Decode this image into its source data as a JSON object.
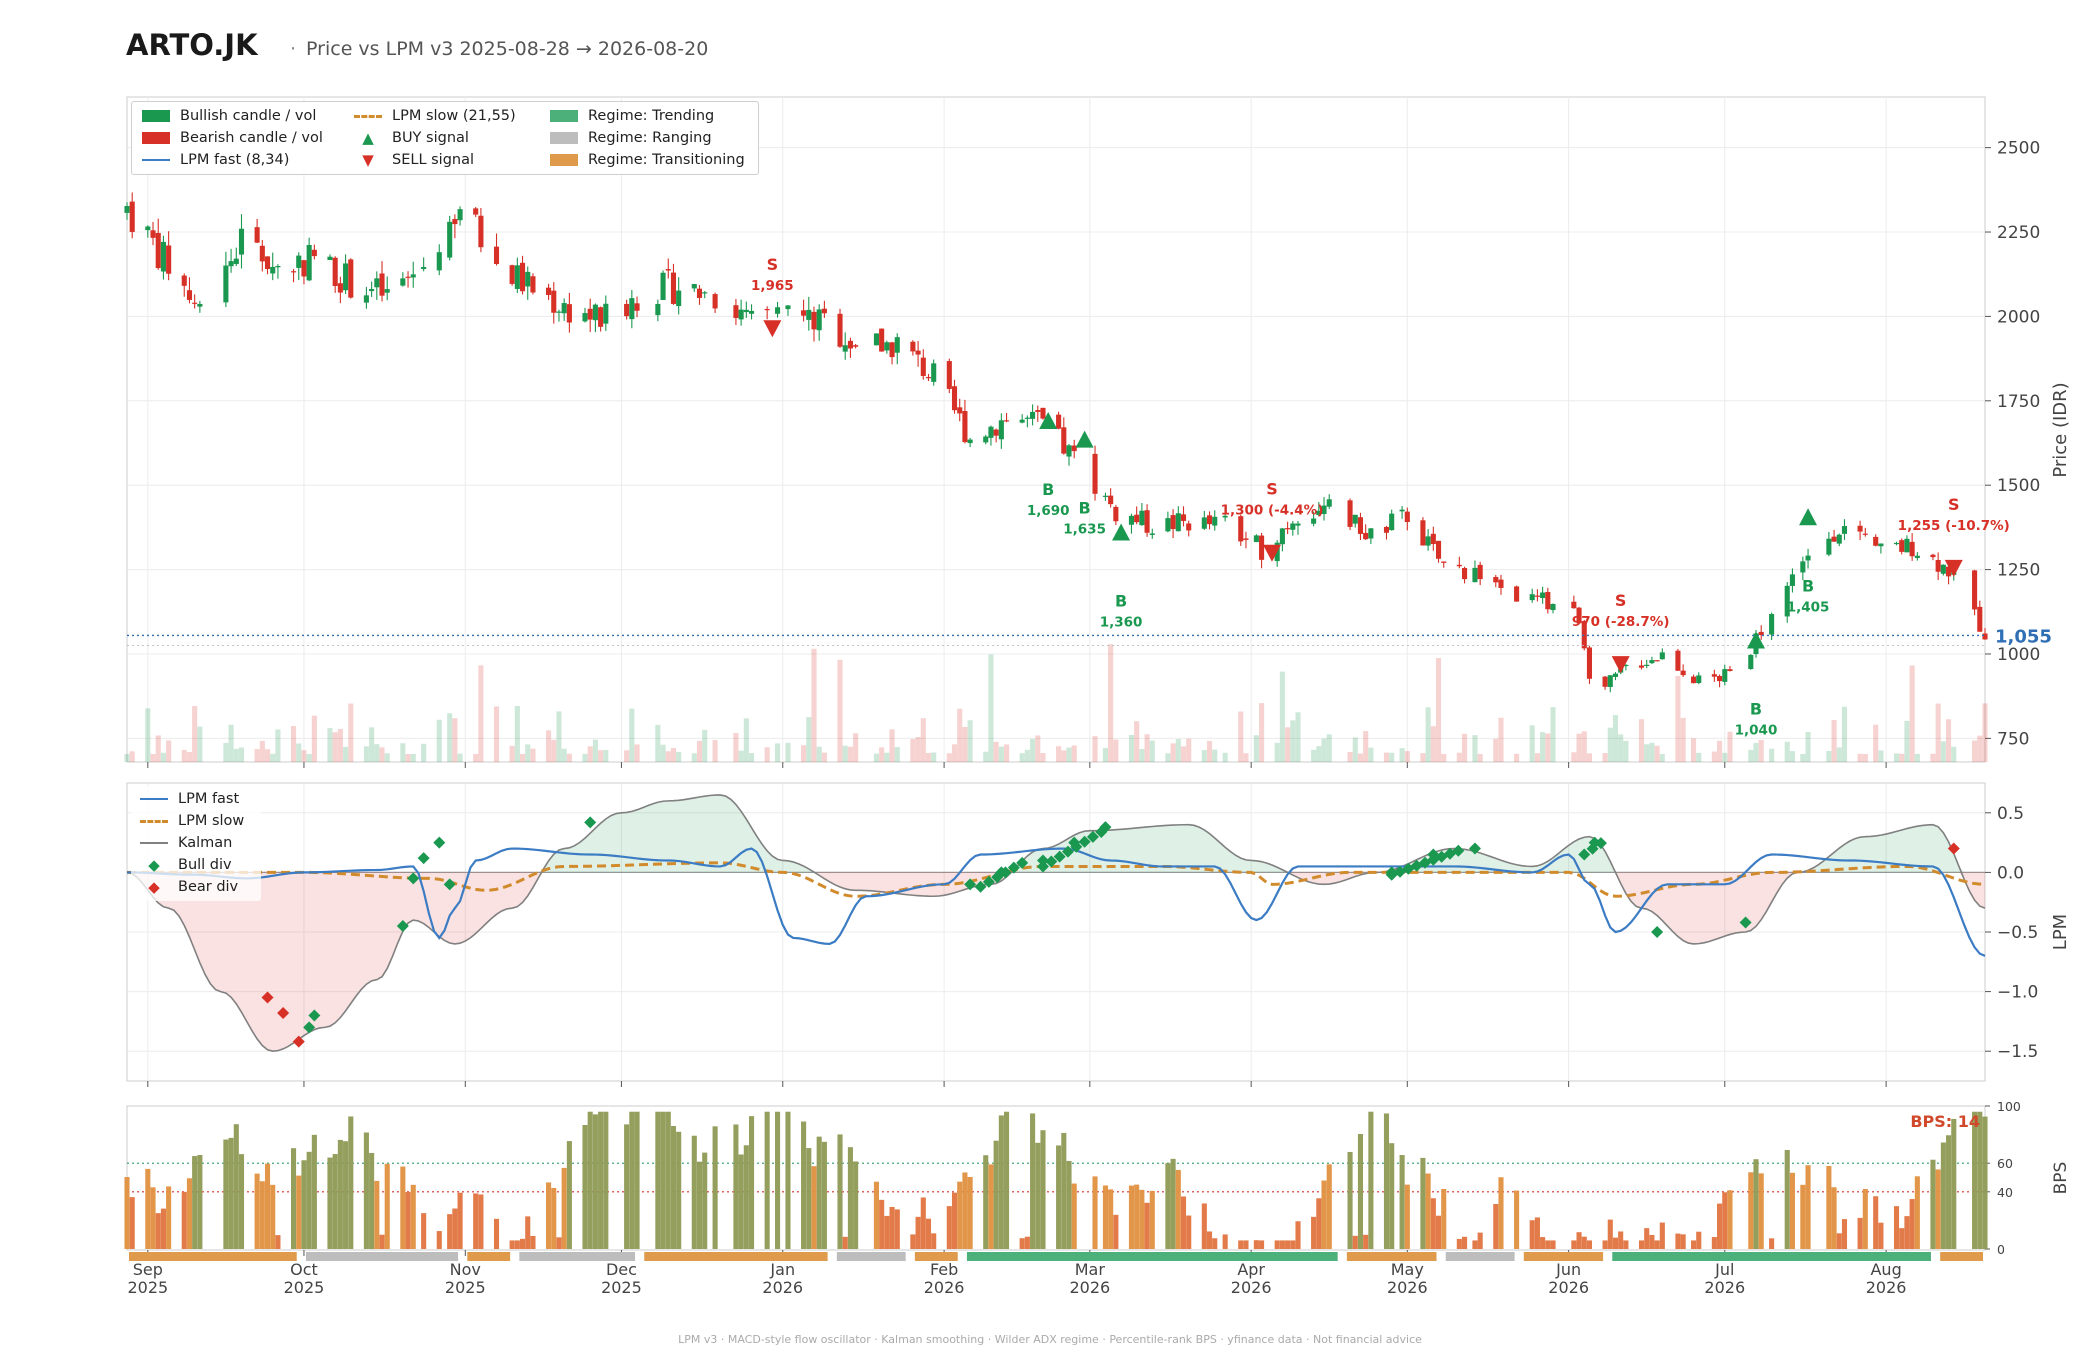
{
  "header": {
    "ticker": "ARTO.JK",
    "dot": "·",
    "subtitle": "Price vs LPM v3  2025-08-28 → 2026-08-20"
  },
  "footer": "LPM v3  ·  MACD-style flow oscillator  ·  Kalman smoothing  ·  Wilder ADX regime  ·  Percentile-rank BPS  ·  yfinance data  ·  Not financial advice",
  "colors": {
    "bull": "#1a9850",
    "bear": "#d73027",
    "fast": "#3b7cc4",
    "slow": "#d18b2c",
    "kalman": "#808080",
    "trending": "#4cb07a",
    "ranging": "#bdbdbd",
    "transitioning": "#e09a4c"
  },
  "legends": {
    "price": [
      {
        "label": "Bullish candle / vol",
        "icon": "green-box"
      },
      {
        "label": "Bearish candle / vol",
        "icon": "red-box"
      },
      {
        "label": "LPM fast (8,34)",
        "icon": "blue-line"
      },
      {
        "label": "LPM slow (21,55)",
        "icon": "orange-dashed-line"
      },
      {
        "label": "BUY signal",
        "icon": "triangle-up-icon"
      },
      {
        "label": "SELL signal",
        "icon": "triangle-down-icon"
      },
      {
        "label": "Regime: Trending",
        "icon": "green-box"
      },
      {
        "label": "Regime: Ranging",
        "icon": "grey-box"
      },
      {
        "label": "Regime: Transitioning",
        "icon": "orange-box"
      }
    ],
    "lpm": [
      {
        "label": "LPM fast",
        "icon": "blue-line"
      },
      {
        "label": "LPM slow",
        "icon": "orange-dashed-line"
      },
      {
        "label": "Kalman",
        "icon": "grey-line"
      },
      {
        "label": "Bull div",
        "icon": "diamond-icon"
      },
      {
        "label": "Bear div",
        "icon": "diamond-icon"
      }
    ]
  },
  "chart_data": [
    {
      "type": "candlestick",
      "title": "Price vs LPM v3",
      "ylabel": "Price (IDR)",
      "ylim": [
        680,
        2650
      ],
      "yticks": [
        750,
        1000,
        1250,
        1500,
        1750,
        2000,
        2250,
        2500
      ],
      "xlim": [
        "2025-08-28",
        "2026-08-20"
      ],
      "x_ticks": [
        {
          "date": "2025-09-01",
          "month": "Sep",
          "year": "2025"
        },
        {
          "date": "2025-10-01",
          "month": "Oct",
          "year": "2025"
        },
        {
          "date": "2025-11-01",
          "month": "Nov",
          "year": "2025"
        },
        {
          "date": "2025-12-01",
          "month": "Dec",
          "year": "2025"
        },
        {
          "date": "2026-01-01",
          "month": "Jan",
          "year": "2026"
        },
        {
          "date": "2026-02-01",
          "month": "Feb",
          "year": "2026"
        },
        {
          "date": "2026-03-01",
          "month": "Mar",
          "year": "2026"
        },
        {
          "date": "2026-04-01",
          "month": "Apr",
          "year": "2026"
        },
        {
          "date": "2026-05-01",
          "month": "May",
          "year": "2026"
        },
        {
          "date": "2026-06-01",
          "month": "Jun",
          "year": "2026"
        },
        {
          "date": "2026-07-01",
          "month": "Jul",
          "year": "2026"
        },
        {
          "date": "2026-08-01",
          "month": "Aug",
          "year": "2026"
        }
      ],
      "close_path": [
        [
          "2025-08-28",
          2320
        ],
        [
          "2025-09-05",
          2150
        ],
        [
          "2025-09-12",
          2000
        ],
        [
          "2025-09-19",
          2230
        ],
        [
          "2025-09-26",
          2140
        ],
        [
          "2025-10-03",
          2180
        ],
        [
          "2025-10-10",
          2100
        ],
        [
          "2025-10-17",
          2060
        ],
        [
          "2025-10-24",
          2150
        ],
        [
          "2025-10-31",
          2330
        ],
        [
          "2025-11-07",
          2160
        ],
        [
          "2025-11-14",
          2080
        ],
        [
          "2025-11-21",
          2020
        ],
        [
          "2025-11-28",
          1990
        ],
        [
          "2025-12-05",
          2070
        ],
        [
          "2025-12-12",
          2090
        ],
        [
          "2025-12-19",
          2060
        ],
        [
          "2025-12-26",
          1980
        ],
        [
          "2026-01-02",
          2010
        ],
        [
          "2026-01-09",
          1980
        ],
        [
          "2026-01-16",
          1910
        ],
        [
          "2026-01-23",
          1920
        ],
        [
          "2026-01-30",
          1820
        ],
        [
          "2026-02-06",
          1640
        ],
        [
          "2026-02-13",
          1700
        ],
        [
          "2026-02-20",
          1680
        ],
        [
          "2026-02-27",
          1560
        ],
        [
          "2026-03-06",
          1420
        ],
        [
          "2026-03-13",
          1380
        ],
        [
          "2026-03-20",
          1390
        ],
        [
          "2026-03-27",
          1380
        ],
        [
          "2026-04-03",
          1310
        ],
        [
          "2026-04-10",
          1420
        ],
        [
          "2026-04-17",
          1430
        ],
        [
          "2026-04-24",
          1350
        ],
        [
          "2026-05-01",
          1410
        ],
        [
          "2026-05-08",
          1260
        ],
        [
          "2026-05-15",
          1240
        ],
        [
          "2026-05-22",
          1170
        ],
        [
          "2026-05-29",
          1150
        ],
        [
          "2026-06-03",
          1110
        ],
        [
          "2026-06-06",
          870
        ],
        [
          "2026-06-12",
          960
        ],
        [
          "2026-06-19",
          1000
        ],
        [
          "2026-06-26",
          920
        ],
        [
          "2026-07-03",
          940
        ],
        [
          "2026-07-09",
          1100
        ],
        [
          "2026-07-16",
          1280
        ],
        [
          "2026-07-23",
          1380
        ],
        [
          "2026-07-30",
          1300
        ],
        [
          "2026-08-06",
          1320
        ],
        [
          "2026-08-13",
          1250
        ],
        [
          "2026-08-20",
          1060
        ]
      ],
      "volume": "bars under price, colored by candle direction",
      "last_price": {
        "label": "1,055",
        "value": 1055
      },
      "signals": [
        {
          "type": "SELL",
          "date": "2025-12-30",
          "price": 1965,
          "letter": "S",
          "label": "1,965"
        },
        {
          "type": "BUY",
          "date": "2026-02-21",
          "price": 1690,
          "letter": "B",
          "label": "1,690"
        },
        {
          "type": "BUY",
          "date": "2026-02-28",
          "price": 1635,
          "letter": "B",
          "label": "1,635"
        },
        {
          "type": "BUY",
          "date": "2026-03-07",
          "price": 1360,
          "letter": "B",
          "label": "1,360"
        },
        {
          "type": "SELL",
          "date": "2026-04-05",
          "price": 1300,
          "letter": "S",
          "label": "1,300 (-4.4%)"
        },
        {
          "type": "SELL",
          "date": "2026-06-11",
          "price": 970,
          "letter": "S",
          "label": "970 (-28.7%)"
        },
        {
          "type": "BUY",
          "date": "2026-07-07",
          "price": 1040,
          "letter": "B",
          "label": "1,040"
        },
        {
          "type": "BUY",
          "date": "2026-07-17",
          "price": 1405,
          "letter": "B",
          "label": "1,405"
        },
        {
          "type": "SELL",
          "date": "2026-08-14",
          "price": 1255,
          "letter": "S",
          "label": "1,255 (-10.7%)"
        }
      ]
    },
    {
      "type": "line",
      "ylabel": "LPM",
      "ylim": [
        -1.75,
        0.75
      ],
      "yticks": [
        -1.5,
        -1.0,
        -0.5,
        0.0,
        0.5
      ],
      "ytick_labels": [
        "−1.5",
        "−1.0",
        "−0.5",
        "0.0",
        "0.5"
      ],
      "series": [
        {
          "name": "LPM fast",
          "points": [
            [
              "2025-08-28",
              0.0
            ],
            [
              "2025-09-10",
              -0.02
            ],
            [
              "2025-09-20",
              -0.05
            ],
            [
              "2025-10-01",
              0.0
            ],
            [
              "2025-10-15",
              0.02
            ],
            [
              "2025-10-22",
              0.05
            ],
            [
              "2025-10-27",
              -0.55
            ],
            [
              "2025-10-30",
              -0.3
            ],
            [
              "2025-11-03",
              0.1
            ],
            [
              "2025-11-10",
              0.2
            ],
            [
              "2025-11-25",
              0.15
            ],
            [
              "2025-12-10",
              0.1
            ],
            [
              "2025-12-20",
              0.05
            ],
            [
              "2025-12-26",
              0.2
            ],
            [
              "2026-01-03",
              -0.55
            ],
            [
              "2026-01-10",
              -0.6
            ],
            [
              "2026-01-17",
              -0.2
            ],
            [
              "2026-02-01",
              -0.1
            ],
            [
              "2026-02-08",
              0.15
            ],
            [
              "2026-02-24",
              0.2
            ],
            [
              "2026-03-05",
              0.1
            ],
            [
              "2026-03-15",
              0.05
            ],
            [
              "2026-03-25",
              0.05
            ],
            [
              "2026-04-02",
              -0.4
            ],
            [
              "2026-04-10",
              0.05
            ],
            [
              "2026-04-25",
              0.05
            ],
            [
              "2026-05-10",
              0.05
            ],
            [
              "2026-05-25",
              0.0
            ],
            [
              "2026-06-01",
              0.15
            ],
            [
              "2026-06-05",
              -0.1
            ],
            [
              "2026-06-10",
              -0.5
            ],
            [
              "2026-06-20",
              -0.1
            ],
            [
              "2026-07-01",
              -0.1
            ],
            [
              "2026-07-10",
              0.15
            ],
            [
              "2026-07-25",
              0.1
            ],
            [
              "2026-08-10",
              0.05
            ],
            [
              "2026-08-20",
              -0.7
            ]
          ]
        },
        {
          "name": "LPM slow",
          "points": [
            [
              "2025-08-28",
              0.0
            ],
            [
              "2025-10-01",
              0.0
            ],
            [
              "2025-10-25",
              -0.05
            ],
            [
              "2025-11-05",
              -0.15
            ],
            [
              "2025-11-20",
              0.05
            ],
            [
              "2025-12-20",
              0.08
            ],
            [
              "2026-01-01",
              0.0
            ],
            [
              "2026-01-15",
              -0.2
            ],
            [
              "2026-02-01",
              -0.1
            ],
            [
              "2026-02-20",
              0.05
            ],
            [
              "2026-03-15",
              0.05
            ],
            [
              "2026-04-01",
              0.0
            ],
            [
              "2026-04-05",
              -0.1
            ],
            [
              "2026-04-20",
              0.0
            ],
            [
              "2026-05-15",
              0.0
            ],
            [
              "2026-06-01",
              0.0
            ],
            [
              "2026-06-10",
              -0.2
            ],
            [
              "2026-06-25",
              -0.1
            ],
            [
              "2026-07-10",
              0.0
            ],
            [
              "2026-08-05",
              0.05
            ],
            [
              "2026-08-20",
              -0.1
            ]
          ]
        },
        {
          "name": "Kalman",
          "points": [
            [
              "2025-08-28",
              0.0
            ],
            [
              "2025-09-05",
              -0.3
            ],
            [
              "2025-09-15",
              -1.0
            ],
            [
              "2025-09-25",
              -1.5
            ],
            [
              "2025-10-05",
              -1.3
            ],
            [
              "2025-10-15",
              -0.9
            ],
            [
              "2025-10-22",
              -0.4
            ],
            [
              "2025-10-30",
              -0.6
            ],
            [
              "2025-11-10",
              -0.3
            ],
            [
              "2025-11-20",
              0.2
            ],
            [
              "2025-12-01",
              0.5
            ],
            [
              "2025-12-10",
              0.6
            ],
            [
              "2025-12-20",
              0.65
            ],
            [
              "2026-01-01",
              0.1
            ],
            [
              "2026-01-15",
              -0.15
            ],
            [
              "2026-01-30",
              -0.2
            ],
            [
              "2026-02-10",
              -0.1
            ],
            [
              "2026-02-20",
              0.2
            ],
            [
              "2026-03-01",
              0.35
            ],
            [
              "2026-03-20",
              0.4
            ],
            [
              "2026-04-01",
              0.1
            ],
            [
              "2026-04-15",
              -0.1
            ],
            [
              "2026-04-25",
              0.0
            ],
            [
              "2026-05-10",
              0.2
            ],
            [
              "2026-05-25",
              0.05
            ],
            [
              "2026-06-05",
              0.3
            ],
            [
              "2026-06-15",
              -0.3
            ],
            [
              "2026-06-25",
              -0.6
            ],
            [
              "2026-07-05",
              -0.5
            ],
            [
              "2026-07-15",
              0.0
            ],
            [
              "2026-07-28",
              0.3
            ],
            [
              "2026-08-10",
              0.4
            ],
            [
              "2026-08-20",
              -0.3
            ]
          ]
        }
      ],
      "bull_div": [
        [
          "2025-10-02",
          -1.3
        ],
        [
          "2025-10-03",
          -1.2
        ],
        [
          "2025-10-20",
          -0.45
        ],
        [
          "2025-10-22",
          -0.05
        ],
        [
          "2025-10-24",
          0.12
        ],
        [
          "2025-10-27",
          0.25
        ],
        [
          "2025-10-29",
          -0.1
        ],
        [
          "2025-11-25",
          0.42
        ],
        [
          "2026-02-06",
          -0.1
        ],
        [
          "2026-02-12",
          0.0
        ],
        [
          "2026-02-20",
          0.1
        ],
        [
          "2026-02-26",
          0.25
        ],
        [
          "2026-03-04",
          0.38
        ],
        [
          "2026-04-28",
          0.0
        ],
        [
          "2026-05-06",
          0.15
        ],
        [
          "2026-05-14",
          0.2
        ],
        [
          "2026-06-06",
          0.25
        ],
        [
          "2026-06-18",
          -0.5
        ],
        [
          "2026-07-05",
          -0.42
        ]
      ],
      "bear_div": [
        [
          "2025-09-24",
          -1.05
        ],
        [
          "2025-09-27",
          -1.18
        ],
        [
          "2025-09-30",
          -1.42
        ],
        [
          "2026-08-14",
          0.2
        ]
      ]
    },
    {
      "type": "bar",
      "ylabel": "BPS",
      "ylim": [
        0,
        100
      ],
      "yticks": [
        0,
        40,
        60,
        100
      ],
      "threshold_lines": [
        60,
        40
      ],
      "last_value_label": "BPS: 14",
      "last_value": 14,
      "regime_strip": [
        {
          "regime": "Transitioning",
          "from": "2025-08-28",
          "to": "2025-09-30"
        },
        {
          "regime": "Ranging",
          "from": "2025-10-01",
          "to": "2025-10-31"
        },
        {
          "regime": "Transitioning",
          "from": "2025-11-01",
          "to": "2025-11-10"
        },
        {
          "regime": "Ranging",
          "from": "2025-11-11",
          "to": "2025-12-04"
        },
        {
          "regime": "Transitioning",
          "from": "2025-12-05",
          "to": "2026-01-10"
        },
        {
          "regime": "Ranging",
          "from": "2026-01-11",
          "to": "2026-01-25"
        },
        {
          "regime": "Transitioning",
          "from": "2026-01-26",
          "to": "2026-02-04"
        },
        {
          "regime": "Trending",
          "from": "2026-02-05",
          "to": "2026-04-18"
        },
        {
          "regime": "Transitioning",
          "from": "2026-04-19",
          "to": "2026-05-07"
        },
        {
          "regime": "Ranging",
          "from": "2026-05-08",
          "to": "2026-05-22"
        },
        {
          "regime": "Transitioning",
          "from": "2026-05-23",
          "to": "2026-06-08"
        },
        {
          "regime": "Trending",
          "from": "2026-06-09",
          "to": "2026-08-10"
        },
        {
          "regime": "Transitioning",
          "from": "2026-08-11",
          "to": "2026-08-20"
        }
      ]
    }
  ]
}
